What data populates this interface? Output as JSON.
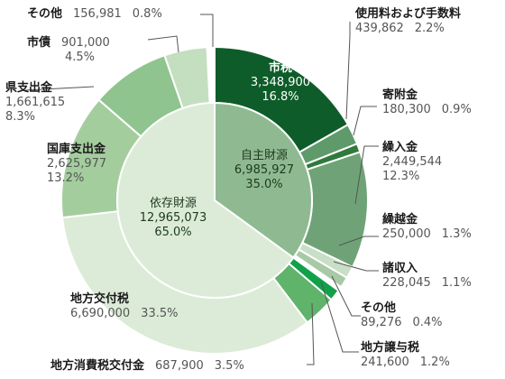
{
  "chart_data": {
    "type": "pie",
    "subtype": "nested-donut",
    "inner": [
      {
        "name": "自主財源",
        "value": "6,985,927",
        "pct": "35.0%",
        "color": "#8fba91"
      },
      {
        "name": "依存財源",
        "value": "12,965,073",
        "pct": "65.0%",
        "color": "#dcebd7"
      }
    ],
    "outer": [
      {
        "name": "市税",
        "value": "3,348,900",
        "pct": "16.8%",
        "color": "#0e5c2a",
        "group": "自主財源"
      },
      {
        "name": "使用料および手数料",
        "value": "439,862",
        "pct": "2.2%",
        "color": "#5f9a6a",
        "group": "自主財源"
      },
      {
        "name": "寄附金",
        "value": "180,300",
        "pct": "0.9%",
        "color": "#2f7a3c",
        "group": "自主財源"
      },
      {
        "name": "繰入金",
        "value": "2,449,544",
        "pct": "12.3%",
        "color": "#6fa377",
        "group": "自主財源"
      },
      {
        "name": "繰越金",
        "value": "250,000",
        "pct": "1.3%",
        "color": "#c9dec6",
        "group": "自主財源"
      },
      {
        "name": "諸収入",
        "value": "228,045",
        "pct": "1.1%",
        "color": "#a7c9a5",
        "group": "自主財源"
      },
      {
        "name": "その他",
        "value": "89,276",
        "pct": "0.4%",
        "color": "#ffffff",
        "group": "自主財源"
      },
      {
        "name": "地方譲与税",
        "value": "241,600",
        "pct": "1.2%",
        "color": "#12a04a",
        "group": "依存財源"
      },
      {
        "name": "地方消費税交付金",
        "value": "687,900",
        "pct": "3.5%",
        "color": "#5fb36a",
        "group": "依存財源"
      },
      {
        "name": "地方交付税",
        "value": "6,690,000",
        "pct": "33.5%",
        "color": "#dcebd7",
        "group": "依存財源"
      },
      {
        "name": "国庫支出金",
        "value": "2,625,977",
        "pct": "13.2%",
        "color": "#a4cd9e",
        "group": "依存財源"
      },
      {
        "name": "県支出金",
        "value": "1,661,615",
        "pct": "8.3%",
        "color": "#8fc48f",
        "group": "依存財源"
      },
      {
        "name": "市債",
        "value": "901,000",
        "pct": "4.5%",
        "color": "#c4dfc0",
        "group": "依存財源"
      },
      {
        "name": "その他",
        "value": "156,981",
        "pct": "0.8%",
        "color": "#ffffff",
        "group": "依存財源"
      }
    ]
  }
}
